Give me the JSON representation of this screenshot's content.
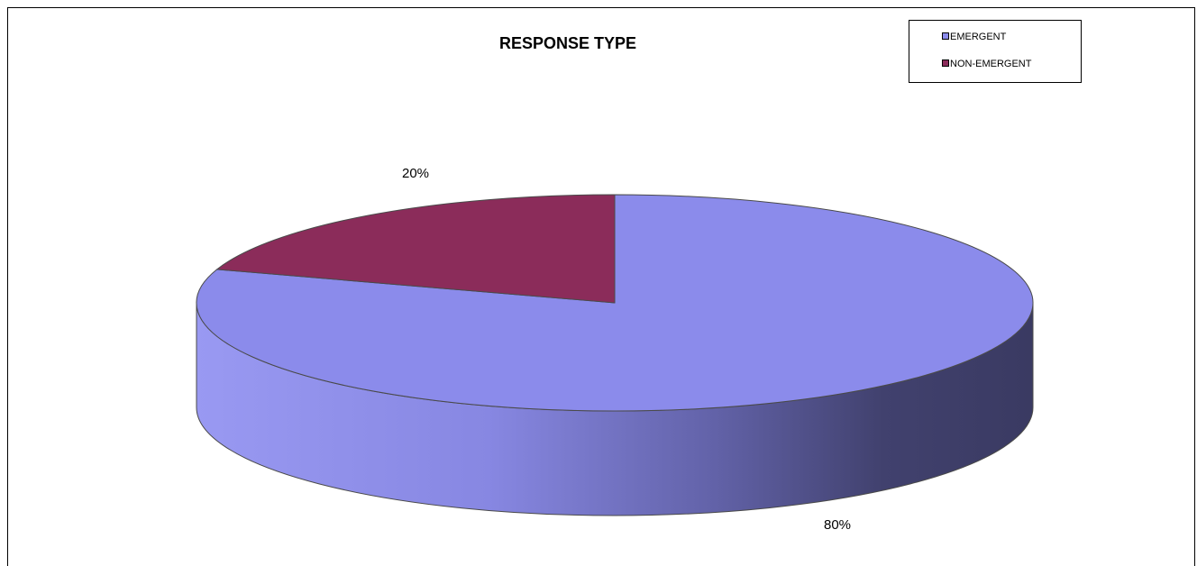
{
  "chart_data": {
    "type": "pie",
    "title": "RESPONSE TYPE",
    "categories": [
      "EMERGENT",
      "NON-EMERGENT"
    ],
    "values": [
      80,
      20
    ],
    "labels": [
      "80%",
      "20%"
    ],
    "colors": [
      "#8B8BEB",
      "#8B2C5A"
    ],
    "legend_position": "top-right",
    "three_d": true
  }
}
